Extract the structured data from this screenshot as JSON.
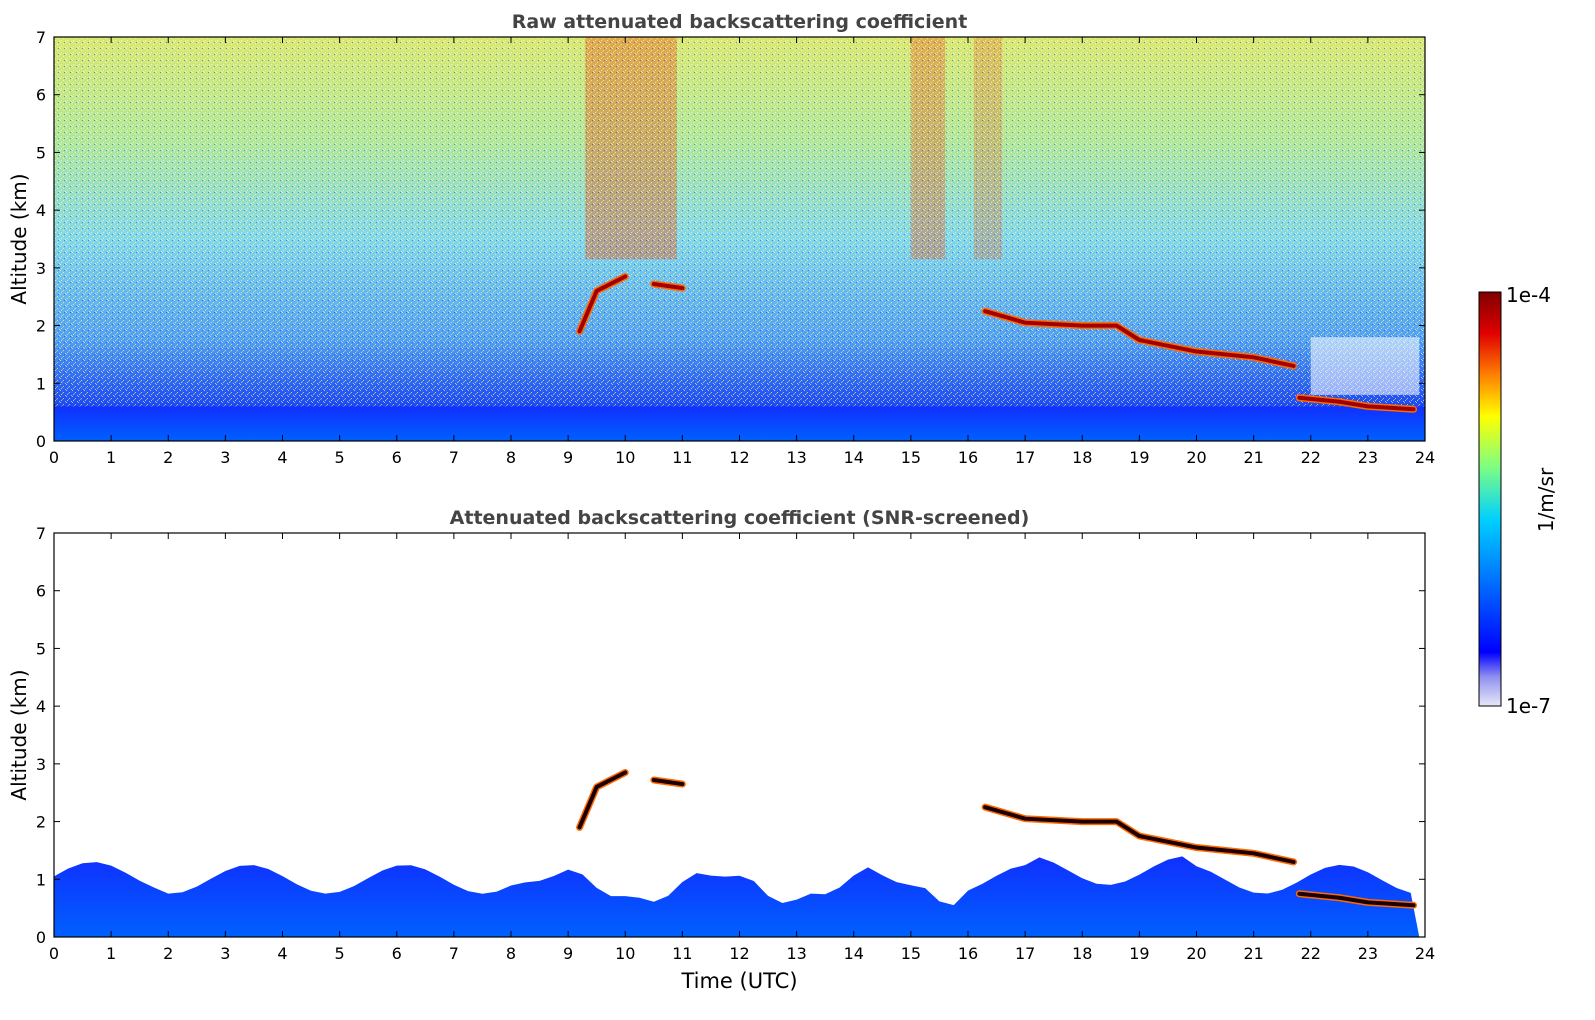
{
  "chart_data": [
    {
      "type": "heatmap",
      "title": "Raw attenuated backscattering coefficient",
      "xlabel": "",
      "ylabel": "Altitude (km)",
      "xlim": [
        0,
        24
      ],
      "ylim": [
        0,
        7
      ],
      "xticks": [
        0,
        1,
        2,
        3,
        4,
        5,
        6,
        7,
        8,
        9,
        10,
        11,
        12,
        13,
        14,
        15,
        16,
        17,
        18,
        19,
        20,
        21,
        22,
        23,
        24
      ],
      "yticks": [
        0,
        1,
        2,
        3,
        4,
        5,
        6,
        7
      ],
      "grid": false,
      "features": [
        {
          "kind": "boundary-layer",
          "time": [
            0,
            24
          ],
          "altitude_top_km": 0.6
        },
        {
          "kind": "cloud-layer",
          "points": [
            [
              9.2,
              1.9
            ],
            [
              9.5,
              2.6
            ],
            [
              10.0,
              2.85
            ]
          ]
        },
        {
          "kind": "cloud-layer",
          "points": [
            [
              10.5,
              2.72
            ],
            [
              11.0,
              2.65
            ]
          ]
        },
        {
          "kind": "cloud-layer",
          "points": [
            [
              16.3,
              2.25
            ],
            [
              17.0,
              2.05
            ],
            [
              18.0,
              2.0
            ],
            [
              18.6,
              2.0
            ],
            [
              19.0,
              1.75
            ],
            [
              20.0,
              1.55
            ],
            [
              21.0,
              1.45
            ],
            [
              21.7,
              1.3
            ]
          ]
        },
        {
          "kind": "cloud-layer",
          "points": [
            [
              21.8,
              0.75
            ],
            [
              22.5,
              0.68
            ],
            [
              23.0,
              0.6
            ],
            [
              23.8,
              0.55
            ]
          ]
        }
      ]
    },
    {
      "type": "heatmap",
      "title": "Attenuated backscattering coefficient (SNR-screened)",
      "xlabel": "Time (UTC)",
      "ylabel": "Altitude (km)",
      "xlim": [
        0,
        24
      ],
      "ylim": [
        0,
        7
      ],
      "xticks": [
        0,
        1,
        2,
        3,
        4,
        5,
        6,
        7,
        8,
        9,
        10,
        11,
        12,
        13,
        14,
        15,
        16,
        17,
        18,
        19,
        20,
        21,
        22,
        23,
        24
      ],
      "yticks": [
        0,
        1,
        2,
        3,
        4,
        5,
        6,
        7
      ],
      "grid": false,
      "features": [
        {
          "kind": "boundary-layer",
          "time": [
            0,
            24
          ],
          "altitude_top_km": 1.0
        },
        {
          "kind": "cloud-layer",
          "points": [
            [
              9.2,
              1.9
            ],
            [
              9.5,
              2.6
            ],
            [
              10.0,
              2.85
            ]
          ]
        },
        {
          "kind": "cloud-layer",
          "points": [
            [
              10.5,
              2.72
            ],
            [
              11.0,
              2.65
            ]
          ]
        },
        {
          "kind": "cloud-layer",
          "points": [
            [
              16.3,
              2.25
            ],
            [
              17.0,
              2.05
            ],
            [
              18.0,
              2.0
            ],
            [
              18.6,
              2.0
            ],
            [
              19.0,
              1.75
            ],
            [
              20.0,
              1.55
            ],
            [
              21.0,
              1.45
            ],
            [
              21.7,
              1.3
            ]
          ]
        },
        {
          "kind": "cloud-layer",
          "points": [
            [
              21.8,
              0.75
            ],
            [
              22.5,
              0.68
            ],
            [
              23.0,
              0.6
            ],
            [
              23.8,
              0.55
            ]
          ]
        }
      ]
    }
  ],
  "colorbar": {
    "label": "1/m/sr",
    "max_label": "1e-4",
    "min_label": "1e-7",
    "range": [
      1e-07,
      0.0001
    ],
    "scale": "log",
    "colormap": [
      "#e8e8f8",
      "#0000ff",
      "#0070ff",
      "#00d0ff",
      "#80ff80",
      "#ffff00",
      "#ff8000",
      "#e00000",
      "#800000"
    ]
  }
}
